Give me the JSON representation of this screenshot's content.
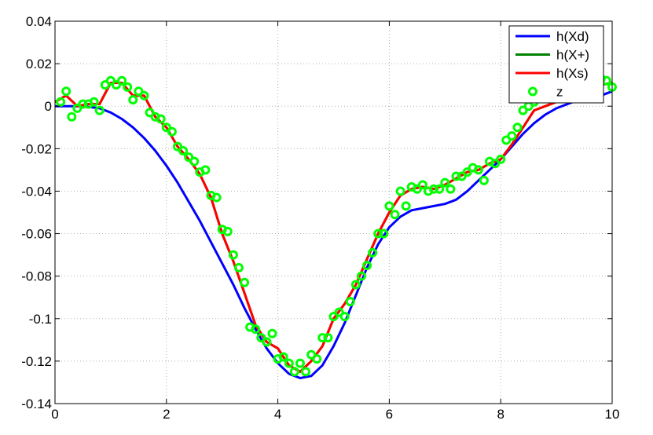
{
  "chart_data": {
    "type": "line",
    "title": "",
    "xlabel": "",
    "ylabel": "",
    "xlim": [
      0,
      10
    ],
    "ylim": [
      -0.14,
      0.04
    ],
    "xticks": [
      0,
      2,
      4,
      6,
      8,
      10
    ],
    "xtick_labels": [
      "0",
      "2",
      "4",
      "6",
      "8",
      "10"
    ],
    "yticks": [
      0.04,
      0.02,
      0,
      -0.02,
      -0.04,
      -0.06,
      -0.08,
      -0.1,
      -0.12,
      -0.14
    ],
    "ytick_labels": [
      "0.04",
      "0.02",
      "0",
      "-0.02",
      "-0.04",
      "-0.06",
      "-0.08",
      "-0.1",
      "-0.12",
      "-0.14"
    ],
    "grid": true,
    "legend_position": "top-right",
    "series": [
      {
        "name": "h(Xd)",
        "color": "#0000ff",
        "style": "line",
        "x": [
          0,
          0.5,
          0.8,
          1.0,
          1.2,
          1.4,
          1.6,
          1.8,
          2.0,
          2.2,
          2.4,
          2.6,
          2.8,
          3.0,
          3.2,
          3.4,
          3.6,
          3.8,
          4.0,
          4.2,
          4.4,
          4.6,
          4.8,
          5.0,
          5.2,
          5.4,
          5.6,
          5.8,
          6.0,
          6.2,
          6.4,
          6.6,
          6.8,
          7.0,
          7.2,
          7.4,
          7.6,
          7.8,
          8.0,
          8.2,
          8.4,
          8.6,
          8.8,
          9.0,
          9.2,
          9.4,
          9.6,
          9.8,
          10.0
        ],
        "y": [
          0.0,
          0.0,
          -0.001,
          -0.003,
          -0.006,
          -0.01,
          -0.015,
          -0.021,
          -0.028,
          -0.036,
          -0.045,
          -0.054,
          -0.064,
          -0.074,
          -0.084,
          -0.095,
          -0.105,
          -0.114,
          -0.121,
          -0.126,
          -0.128,
          -0.127,
          -0.122,
          -0.113,
          -0.102,
          -0.089,
          -0.076,
          -0.065,
          -0.057,
          -0.052,
          -0.049,
          -0.048,
          -0.047,
          -0.046,
          -0.044,
          -0.04,
          -0.035,
          -0.03,
          -0.025,
          -0.019,
          -0.013,
          -0.008,
          -0.004,
          -0.001,
          0.001,
          0.003,
          0.004,
          0.005,
          0.007
        ]
      },
      {
        "name": "h(X+)",
        "color": "#008000",
        "style": "line",
        "x": [
          0.0,
          0.2,
          0.4,
          0.6,
          0.8,
          1.0,
          1.2,
          1.4,
          1.6,
          1.8,
          2.0,
          2.2,
          2.4,
          2.6,
          2.8,
          3.0,
          3.2,
          3.4,
          3.6,
          3.8,
          4.0,
          4.2,
          4.4,
          4.6,
          4.8,
          5.0,
          5.2,
          5.4,
          5.6,
          5.8,
          6.0,
          6.2,
          6.4,
          6.6,
          6.8,
          7.0,
          7.2,
          7.4,
          7.6,
          7.8,
          8.0,
          8.2,
          8.4,
          8.6,
          8.8,
          9.0,
          9.2,
          9.4,
          9.6,
          9.8,
          10.0
        ],
        "y": [
          0.002,
          0.005,
          0.0,
          0.001,
          0.001,
          0.011,
          0.011,
          0.005,
          0.005,
          -0.005,
          -0.01,
          -0.019,
          -0.025,
          -0.032,
          -0.043,
          -0.06,
          -0.073,
          -0.088,
          -0.103,
          -0.111,
          -0.114,
          -0.122,
          -0.125,
          -0.12,
          -0.113,
          -0.1,
          -0.093,
          -0.084,
          -0.072,
          -0.06,
          -0.05,
          -0.042,
          -0.039,
          -0.038,
          -0.039,
          -0.037,
          -0.034,
          -0.031,
          -0.03,
          -0.027,
          -0.025,
          -0.018,
          -0.01,
          -0.002,
          0.0,
          0.002,
          0.004,
          0.006,
          0.008,
          0.01,
          0.011
        ]
      },
      {
        "name": "h(Xs)",
        "color": "#ff0000",
        "style": "line",
        "x": [
          0.0,
          0.2,
          0.4,
          0.6,
          0.8,
          1.0,
          1.2,
          1.4,
          1.6,
          1.8,
          2.0,
          2.2,
          2.4,
          2.6,
          2.8,
          3.0,
          3.2,
          3.4,
          3.6,
          3.8,
          4.0,
          4.2,
          4.4,
          4.6,
          4.8,
          5.0,
          5.2,
          5.4,
          5.6,
          5.8,
          6.0,
          6.2,
          6.4,
          6.6,
          6.8,
          7.0,
          7.2,
          7.4,
          7.6,
          7.8,
          8.0,
          8.2,
          8.4,
          8.6,
          8.8,
          9.0,
          9.2,
          9.4,
          9.6,
          9.8,
          10.0
        ],
        "y": [
          0.002,
          0.005,
          0.0,
          0.001,
          0.001,
          0.011,
          0.011,
          0.005,
          0.005,
          -0.005,
          -0.01,
          -0.019,
          -0.025,
          -0.032,
          -0.043,
          -0.06,
          -0.073,
          -0.088,
          -0.103,
          -0.111,
          -0.114,
          -0.122,
          -0.125,
          -0.12,
          -0.113,
          -0.1,
          -0.093,
          -0.084,
          -0.072,
          -0.06,
          -0.05,
          -0.042,
          -0.039,
          -0.038,
          -0.039,
          -0.037,
          -0.034,
          -0.031,
          -0.03,
          -0.027,
          -0.025,
          -0.018,
          -0.01,
          -0.002,
          0.0,
          0.002,
          0.004,
          0.006,
          0.008,
          0.01,
          0.011
        ]
      },
      {
        "name": "z",
        "color": "#00ff00",
        "style": "marker",
        "marker": "circle",
        "x": [
          0.1,
          0.2,
          0.3,
          0.4,
          0.5,
          0.6,
          0.7,
          0.8,
          0.9,
          1.0,
          1.1,
          1.2,
          1.3,
          1.4,
          1.5,
          1.6,
          1.7,
          1.8,
          1.9,
          2.0,
          2.1,
          2.2,
          2.3,
          2.4,
          2.5,
          2.6,
          2.7,
          2.8,
          2.9,
          3.0,
          3.1,
          3.2,
          3.3,
          3.4,
          3.5,
          3.6,
          3.7,
          3.8,
          3.9,
          4.0,
          4.1,
          4.2,
          4.3,
          4.4,
          4.5,
          4.6,
          4.7,
          4.8,
          4.9,
          5.0,
          5.1,
          5.2,
          5.3,
          5.4,
          5.5,
          5.6,
          5.7,
          5.8,
          5.9,
          6.0,
          6.1,
          6.2,
          6.3,
          6.4,
          6.5,
          6.6,
          6.7,
          6.8,
          6.9,
          7.0,
          7.1,
          7.2,
          7.3,
          7.4,
          7.5,
          7.6,
          7.7,
          7.8,
          7.9,
          8.0,
          8.1,
          8.2,
          8.3,
          8.4,
          8.5,
          8.6,
          8.7,
          8.8,
          8.9,
          9.0,
          9.1,
          9.2,
          9.3,
          9.4,
          9.5,
          9.6,
          9.7,
          9.8,
          9.9,
          10.0
        ],
        "y": [
          0.002,
          0.007,
          -0.005,
          -0.001,
          0.001,
          0.001,
          0.002,
          -0.002,
          0.01,
          0.012,
          0.01,
          0.012,
          0.009,
          0.003,
          0.007,
          0.005,
          -0.003,
          -0.005,
          -0.006,
          -0.01,
          -0.012,
          -0.019,
          -0.021,
          -0.024,
          -0.026,
          -0.031,
          -0.03,
          -0.042,
          -0.043,
          -0.058,
          -0.059,
          -0.07,
          -0.076,
          -0.083,
          -0.104,
          -0.105,
          -0.109,
          -0.111,
          -0.107,
          -0.119,
          -0.118,
          -0.121,
          -0.125,
          -0.121,
          -0.125,
          -0.117,
          -0.119,
          -0.109,
          -0.109,
          -0.099,
          -0.097,
          -0.099,
          -0.092,
          -0.084,
          -0.08,
          -0.075,
          -0.069,
          -0.06,
          -0.06,
          -0.047,
          -0.051,
          -0.04,
          -0.047,
          -0.038,
          -0.039,
          -0.037,
          -0.04,
          -0.039,
          -0.039,
          -0.036,
          -0.039,
          -0.033,
          -0.033,
          -0.031,
          -0.029,
          -0.03,
          -0.035,
          -0.026,
          -0.027,
          -0.025,
          -0.016,
          -0.014,
          -0.01,
          -0.002,
          0.0,
          0.002,
          0.004,
          0.004,
          0.005,
          0.004,
          0.005,
          0.007,
          0.008,
          0.008,
          0.009,
          0.01,
          0.011,
          0.013,
          0.012,
          0.009
        ]
      }
    ]
  }
}
